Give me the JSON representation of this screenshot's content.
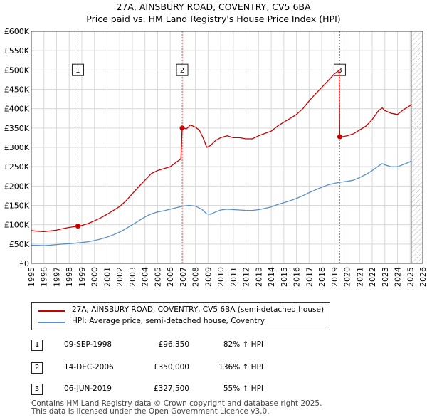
{
  "chart_data": {
    "type": "line",
    "title": "27A, AINSBURY ROAD, COVENTRY, CV5 6BA",
    "subtitle": "Price paid vs. HM Land Registry's House Price Index (HPI)",
    "xlabel": "",
    "ylabel": "",
    "xlim": [
      1995,
      2026
    ],
    "ylim": [
      0,
      600000
    ],
    "x_ticks": [
      "1995",
      "1996",
      "1997",
      "1998",
      "1999",
      "2000",
      "2001",
      "2002",
      "2003",
      "2004",
      "2005",
      "2006",
      "2007",
      "2008",
      "2009",
      "2010",
      "2011",
      "2012",
      "2013",
      "2014",
      "2015",
      "2016",
      "2017",
      "2018",
      "2019",
      "2020",
      "2021",
      "2022",
      "2023",
      "2024",
      "2025",
      "2026"
    ],
    "y_ticks": [
      {
        "v": 0,
        "label": "£0"
      },
      {
        "v": 50000,
        "label": "£50K"
      },
      {
        "v": 100000,
        "label": "£100K"
      },
      {
        "v": 150000,
        "label": "£150K"
      },
      {
        "v": 200000,
        "label": "£200K"
      },
      {
        "v": 250000,
        "label": "£250K"
      },
      {
        "v": 300000,
        "label": "£300K"
      },
      {
        "v": 350000,
        "label": "£350K"
      },
      {
        "v": 400000,
        "label": "£400K"
      },
      {
        "v": 450000,
        "label": "£450K"
      },
      {
        "v": 500000,
        "label": "£500K"
      },
      {
        "v": 550000,
        "label": "£550K"
      },
      {
        "v": 600000,
        "label": "£600K"
      }
    ],
    "hatch_from": 2025.1,
    "colors": {
      "property": "#cc0000",
      "hpi": "#5b8fcc",
      "marker_line": "#dd6666"
    },
    "series": [
      {
        "name": "27A, AINSBURY ROAD, COVENTRY, CV5 6BA (semi-detached house)",
        "color": "#cc0000",
        "points": [
          [
            1995,
            85000
          ],
          [
            1995.5,
            83000
          ],
          [
            1996,
            82000
          ],
          [
            1996.5,
            84000
          ],
          [
            1997,
            86000
          ],
          [
            1997.5,
            90000
          ],
          [
            1998,
            93000
          ],
          [
            1998.69,
            96350
          ],
          [
            1999,
            98000
          ],
          [
            1999.5,
            103000
          ],
          [
            2000,
            110000
          ],
          [
            2000.5,
            118000
          ],
          [
            2001,
            127000
          ],
          [
            2001.5,
            137000
          ],
          [
            2002,
            147000
          ],
          [
            2002.5,
            162000
          ],
          [
            2003,
            180000
          ],
          [
            2003.5,
            198000
          ],
          [
            2004,
            215000
          ],
          [
            2004.5,
            232000
          ],
          [
            2005,
            240000
          ],
          [
            2005.5,
            245000
          ],
          [
            2006,
            250000
          ],
          [
            2006.5,
            262000
          ],
          [
            2006.85,
            270000
          ],
          [
            2006.95,
            350000
          ],
          [
            2007.3,
            348000
          ],
          [
            2007.6,
            358000
          ],
          [
            2008,
            352000
          ],
          [
            2008.3,
            345000
          ],
          [
            2008.6,
            325000
          ],
          [
            2008.9,
            300000
          ],
          [
            2009.2,
            305000
          ],
          [
            2009.6,
            318000
          ],
          [
            2010,
            325000
          ],
          [
            2010.5,
            330000
          ],
          [
            2011,
            325000
          ],
          [
            2011.5,
            325000
          ],
          [
            2012,
            322000
          ],
          [
            2012.5,
            322000
          ],
          [
            2013,
            330000
          ],
          [
            2013.5,
            336000
          ],
          [
            2014,
            342000
          ],
          [
            2014.5,
            355000
          ],
          [
            2015,
            365000
          ],
          [
            2015.5,
            375000
          ],
          [
            2016,
            385000
          ],
          [
            2016.5,
            400000
          ],
          [
            2017,
            420000
          ],
          [
            2017.5,
            438000
          ],
          [
            2018,
            455000
          ],
          [
            2018.5,
            472000
          ],
          [
            2019,
            490000
          ],
          [
            2019.3,
            497000
          ],
          [
            2019.38,
            500000
          ],
          [
            2019.43,
            327500
          ],
          [
            2019.7,
            328000
          ],
          [
            2020,
            330000
          ],
          [
            2020.5,
            335000
          ],
          [
            2021,
            345000
          ],
          [
            2021.5,
            355000
          ],
          [
            2022,
            372000
          ],
          [
            2022.5,
            395000
          ],
          [
            2022.8,
            402000
          ],
          [
            2023,
            395000
          ],
          [
            2023.5,
            388000
          ],
          [
            2024,
            385000
          ],
          [
            2024.5,
            398000
          ],
          [
            2025,
            408000
          ],
          [
            2025.1,
            412000
          ]
        ]
      },
      {
        "name": "HPI: Average price, semi-detached house, Coventry",
        "color": "#5b8fcc",
        "points": [
          [
            1995,
            47000
          ],
          [
            1995.5,
            46500
          ],
          [
            1996,
            46000
          ],
          [
            1996.5,
            47000
          ],
          [
            1997,
            48500
          ],
          [
            1997.5,
            50000
          ],
          [
            1998,
            51000
          ],
          [
            1998.5,
            52500
          ],
          [
            1999,
            54000
          ],
          [
            1999.5,
            56000
          ],
          [
            2000,
            59000
          ],
          [
            2000.5,
            63000
          ],
          [
            2001,
            68000
          ],
          [
            2001.5,
            74000
          ],
          [
            2002,
            81000
          ],
          [
            2002.5,
            90000
          ],
          [
            2003,
            100000
          ],
          [
            2003.5,
            110000
          ],
          [
            2004,
            120000
          ],
          [
            2004.5,
            128000
          ],
          [
            2005,
            133000
          ],
          [
            2005.5,
            136000
          ],
          [
            2006,
            140000
          ],
          [
            2006.5,
            144000
          ],
          [
            2007,
            148000
          ],
          [
            2007.5,
            150000
          ],
          [
            2008,
            148000
          ],
          [
            2008.5,
            140000
          ],
          [
            2008.9,
            128000
          ],
          [
            2009.2,
            127000
          ],
          [
            2009.6,
            133000
          ],
          [
            2010,
            138000
          ],
          [
            2010.5,
            140000
          ],
          [
            2011,
            139000
          ],
          [
            2011.5,
            138000
          ],
          [
            2012,
            137000
          ],
          [
            2012.5,
            137000
          ],
          [
            2013,
            139000
          ],
          [
            2013.5,
            142000
          ],
          [
            2014,
            146000
          ],
          [
            2014.5,
            152000
          ],
          [
            2015,
            157000
          ],
          [
            2015.5,
            162000
          ],
          [
            2016,
            168000
          ],
          [
            2016.5,
            175000
          ],
          [
            2017,
            183000
          ],
          [
            2017.5,
            190000
          ],
          [
            2018,
            197000
          ],
          [
            2018.5,
            203000
          ],
          [
            2019,
            207000
          ],
          [
            2019.5,
            210000
          ],
          [
            2020,
            212000
          ],
          [
            2020.5,
            215000
          ],
          [
            2021,
            222000
          ],
          [
            2021.5,
            230000
          ],
          [
            2022,
            240000
          ],
          [
            2022.5,
            252000
          ],
          [
            2022.8,
            258000
          ],
          [
            2023,
            255000
          ],
          [
            2023.5,
            250000
          ],
          [
            2024,
            250000
          ],
          [
            2024.5,
            256000
          ],
          [
            2025,
            263000
          ],
          [
            2025.1,
            265000
          ]
        ]
      }
    ],
    "sales": [
      {
        "n": "1",
        "x": 1998.69,
        "price": 96350
      },
      {
        "n": "2",
        "x": 2006.95,
        "price": 350000
      },
      {
        "n": "3",
        "x": 2019.43,
        "price": 327500
      }
    ]
  },
  "legend": {
    "property_label": "27A, AINSBURY ROAD, COVENTRY, CV5 6BA (semi-detached house)",
    "hpi_label": "HPI: Average price, semi-detached house, Coventry"
  },
  "sales_table": [
    {
      "n": "1",
      "date": "09-SEP-1998",
      "price": "£96,350",
      "hpi": "82% ↑ HPI"
    },
    {
      "n": "2",
      "date": "14-DEC-2006",
      "price": "£350,000",
      "hpi": "136% ↑ HPI"
    },
    {
      "n": "3",
      "date": "06-JUN-2019",
      "price": "£327,500",
      "hpi": "55% ↑ HPI"
    }
  ],
  "footer": {
    "line1": "Contains HM Land Registry data © Crown copyright and database right 2025.",
    "line2": "This data is licensed under the Open Government Licence v3.0."
  }
}
